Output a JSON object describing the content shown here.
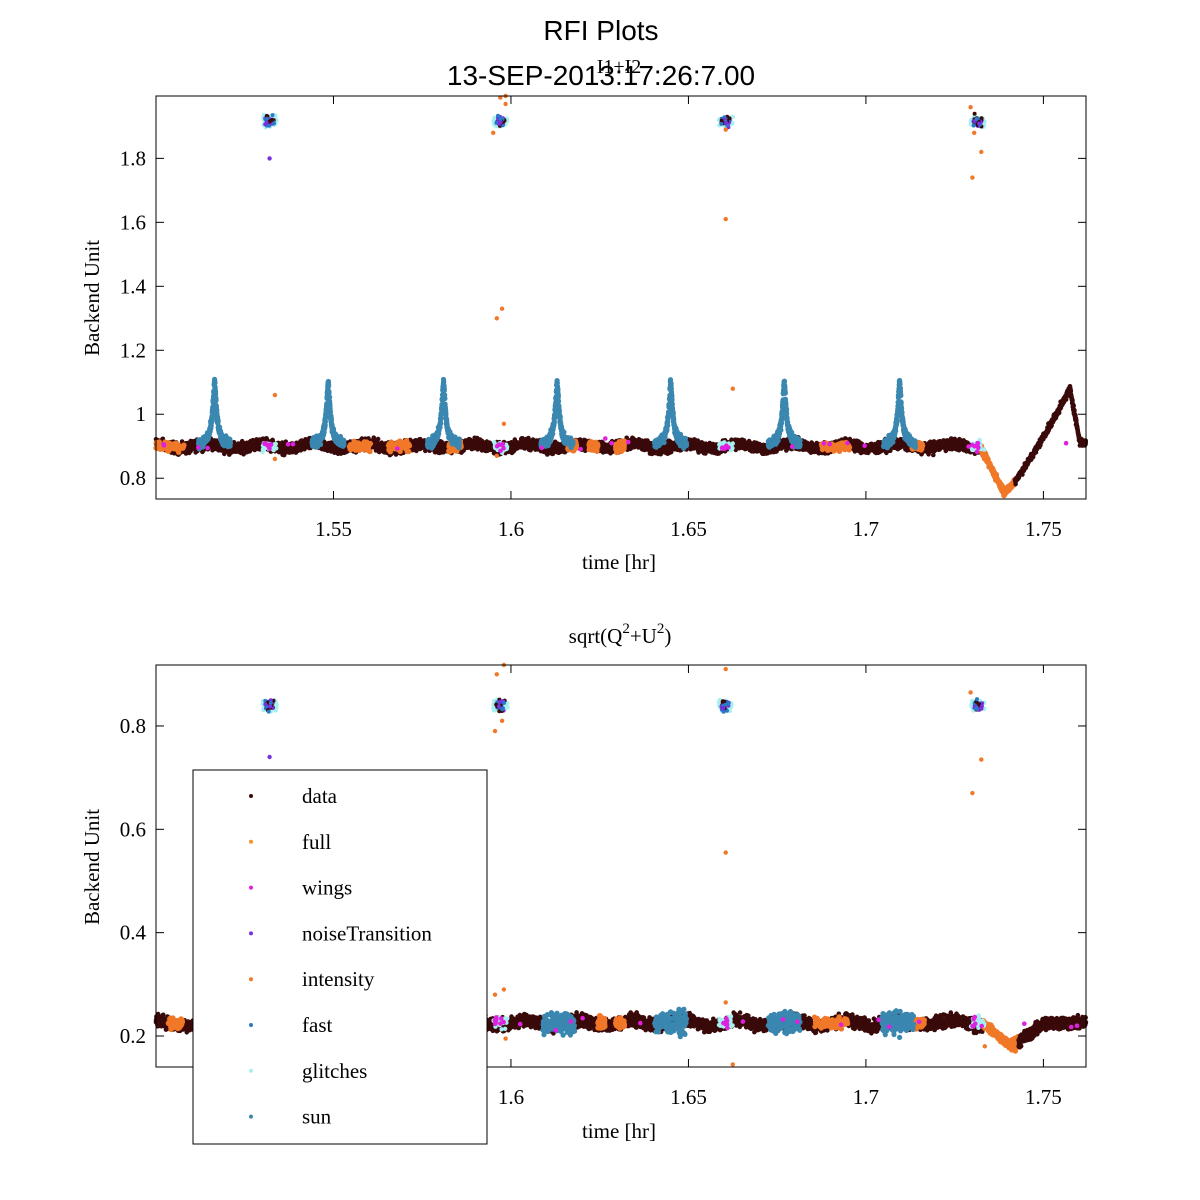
{
  "figure": {
    "title": "RFI Plots",
    "subtitle": "13-SEP-2013:17:26:7.00"
  },
  "colors": {
    "data": "#3a0a0a",
    "full": "#f7912e",
    "wings": "#e020e0",
    "noiseTransition": "#7a30e0",
    "intensity": "#f07828",
    "fast": "#2a78c8",
    "glitches": "#a8f0f0",
    "sun": "#3a87b0"
  },
  "legend": {
    "entries": [
      {
        "key": "data",
        "label": "data"
      },
      {
        "key": "full",
        "label": "full"
      },
      {
        "key": "wings",
        "label": "wings"
      },
      {
        "key": "noiseTransition",
        "label": "noiseTransition"
      },
      {
        "key": "intensity",
        "label": "intensity"
      },
      {
        "key": "fast",
        "label": "fast"
      },
      {
        "key": "glitches",
        "label": "glitches"
      },
      {
        "key": "sun",
        "label": "sun"
      }
    ]
  },
  "chart_data": [
    {
      "type": "scatter",
      "title": "I1+I2",
      "xlabel": "time [hr]",
      "ylabel": "Backend Unit",
      "xlim": [
        1.5,
        1.762
      ],
      "ylim": [
        0.735,
        1.995
      ],
      "xticks": [
        1.55,
        1.6,
        1.65,
        1.7,
        1.75
      ],
      "xticklabels": [
        "1.55",
        "1.6",
        "1.65",
        "1.7",
        "1.75"
      ],
      "yticks": [
        0.8,
        1.0,
        1.2,
        1.4,
        1.6,
        1.8
      ],
      "yticklabels": [
        "0.8",
        "1",
        "1.2",
        "1.4",
        "1.6",
        "1.8"
      ],
      "baseline": 0.9,
      "noise_band": 0.025,
      "sun_peaks": {
        "x": [
          1.5165,
          1.5485,
          1.581,
          1.613,
          1.645,
          1.677,
          1.7095
        ],
        "peak": 1.1,
        "halfwidth": 0.0045
      },
      "glitch_clusters": {
        "x": [
          1.532,
          1.597,
          1.6605,
          1.7315
        ],
        "y": 1.915
      },
      "orange_outliers": [
        [
          1.5335,
          1.06
        ],
        [
          1.5335,
          0.86
        ],
        [
          1.596,
          1.3
        ],
        [
          1.5975,
          1.33
        ],
        [
          1.597,
          1.99
        ],
        [
          1.5985,
          1.995
        ],
        [
          1.595,
          1.88
        ],
        [
          1.5985,
          1.97
        ],
        [
          1.596,
          0.87
        ],
        [
          1.6605,
          1.61
        ],
        [
          1.6605,
          1.89
        ],
        [
          1.6625,
          1.08
        ],
        [
          1.73,
          1.74
        ],
        [
          1.7295,
          1.96
        ],
        [
          1.7325,
          1.82
        ],
        [
          1.7305,
          1.88
        ],
        [
          1.598,
          0.97
        ]
      ],
      "purple_outliers": [
        [
          1.532,
          1.8
        ]
      ],
      "intensity_runs": [
        [
          1.5,
          1.508
        ],
        [
          1.5545,
          1.5605
        ],
        [
          1.5655,
          1.5715
        ],
        [
          1.5825,
          1.586
        ],
        [
          1.616,
          1.6185
        ],
        [
          1.622,
          1.6245
        ],
        [
          1.6295,
          1.632
        ],
        [
          1.6875,
          1.6955
        ],
        [
          1.713,
          1.716
        ]
      ],
      "dip": {
        "start": 1.732,
        "min_x": 1.739,
        "min_y": 0.755,
        "peak_x": 1.7575,
        "peak_y": 1.08,
        "end_y": 0.91
      }
    },
    {
      "type": "scatter",
      "title": "sqrt(Q",
      "title_sup1": "2",
      "title_mid": "+U",
      "title_sup2": "2",
      "title_end": ")",
      "xlabel": "time [hr]",
      "ylabel": "Backend Unit",
      "xlim": [
        1.5,
        1.762
      ],
      "ylim": [
        0.14,
        0.918
      ],
      "xticks": [
        1.6,
        1.65,
        1.7,
        1.75
      ],
      "xticklabels": [
        "1.6",
        "1.65",
        "1.7",
        "1.75"
      ],
      "yticks": [
        0.2,
        0.4,
        0.6,
        0.8
      ],
      "yticklabels": [
        "0.2",
        "0.4",
        "0.6",
        "0.8"
      ],
      "baseline": 0.225,
      "noise_band": 0.018,
      "sun_blobs": {
        "x": [
          1.6135,
          1.645,
          1.677,
          1.709
        ],
        "halfwidth": 0.0045,
        "spread": 0.03
      },
      "glitch_clusters": {
        "x": [
          1.532,
          1.597,
          1.6605,
          1.7315
        ],
        "y": 0.84
      },
      "orange_outliers": [
        [
          1.5955,
          0.79
        ],
        [
          1.5975,
          0.81
        ],
        [
          1.596,
          0.9
        ],
        [
          1.598,
          0.918
        ],
        [
          1.6605,
          0.91
        ],
        [
          1.6605,
          0.555
        ],
        [
          1.73,
          0.67
        ],
        [
          1.7325,
          0.735
        ],
        [
          1.7295,
          0.865
        ],
        [
          1.5955,
          0.28
        ],
        [
          1.598,
          0.29
        ],
        [
          1.5985,
          0.195
        ],
        [
          1.6605,
          0.265
        ],
        [
          1.6625,
          0.145
        ],
        [
          1.7335,
          0.18
        ]
      ],
      "purple_outliers": [
        [
          1.532,
          0.74
        ]
      ],
      "intensity_runs": [
        [
          1.5035,
          1.5075
        ],
        [
          1.6245,
          1.6265
        ],
        [
          1.6295,
          1.632
        ],
        [
          1.6855,
          1.695
        ],
        [
          1.713,
          1.7165
        ]
      ],
      "dip": {
        "start": 1.733,
        "min_x": 1.741,
        "min_y": 0.18,
        "end_y": 0.225
      }
    }
  ]
}
